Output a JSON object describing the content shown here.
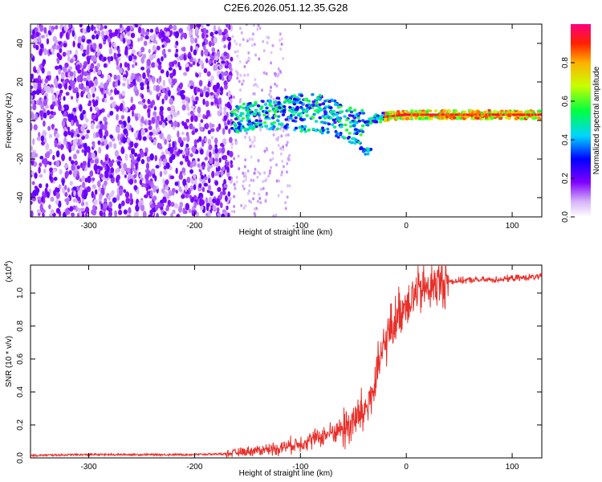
{
  "title": "C2E6.2026.051.12.35.G28",
  "colorbar": {
    "label": "Normalized spectral amplitude",
    "ticks": [
      "0.0",
      "0.2",
      "0.4",
      "0.6",
      "0.8"
    ],
    "tick_values": [
      0.0,
      0.2,
      0.4,
      0.6,
      0.8
    ],
    "range": [
      0,
      1
    ]
  },
  "chart_data": [
    {
      "type": "heatmap",
      "name": "spectrogram",
      "xlabel": "Height of straight line (km)",
      "ylabel": "Frequency (Hz)",
      "xlim": [
        -355,
        128
      ],
      "ylim": [
        -50,
        50
      ],
      "xticks": [
        -300,
        -200,
        -100,
        0,
        100
      ],
      "yticks": [
        -40,
        -20,
        0,
        20,
        40
      ],
      "description_points": {
        "noise_region_km": [
          -355,
          -165
        ],
        "sparse_region_km": [
          -165,
          -110
        ],
        "ridge": [
          {
            "x": -160,
            "y": 1
          },
          {
            "x": -140,
            "y": 3
          },
          {
            "x": -120,
            "y": 5
          },
          {
            "x": -100,
            "y": 7
          },
          {
            "x": -90,
            "y": 7
          },
          {
            "x": -80,
            "y": 6
          },
          {
            "x": -70,
            "y": 4
          },
          {
            "x": -55,
            "y": 0
          },
          {
            "x": -45,
            "y": -2
          },
          {
            "x": -35,
            "y": 0
          },
          {
            "x": -20,
            "y": 2
          },
          {
            "x": 0,
            "y": 3
          },
          {
            "x": 50,
            "y": 3
          },
          {
            "x": 100,
            "y": 3
          },
          {
            "x": 128,
            "y": 3
          }
        ],
        "lower_branch": [
          {
            "x": -150,
            "y": -3
          },
          {
            "x": -120,
            "y": -3
          },
          {
            "x": -100,
            "y": -4
          },
          {
            "x": -80,
            "y": -5
          },
          {
            "x": -60,
            "y": -8
          },
          {
            "x": -45,
            "y": -12
          },
          {
            "x": -40,
            "y": -16
          }
        ]
      }
    },
    {
      "type": "line",
      "name": "snr",
      "color": "#e8302a",
      "xlabel": "Height of straight line (km)",
      "ylabel": "SNR (10 * v/v)",
      "y_multiplier": "(x10",
      "y_multiplier_exp": "4",
      "y_multiplier_close": ")",
      "xlim": [
        -355,
        128
      ],
      "ylim": [
        0,
        1.17
      ],
      "xticks": [
        -300,
        -200,
        -100,
        0,
        100
      ],
      "yticks": [
        0.0,
        0.2,
        0.4,
        0.6,
        0.8,
        1.0
      ],
      "series": [
        {
          "name": "SNR",
          "x": [
            -355,
            -300,
            -250,
            -200,
            -170,
            -150,
            -120,
            -100,
            -80,
            -60,
            -50,
            -40,
            -30,
            -25,
            -20,
            -15,
            -10,
            -5,
            0,
            10,
            20,
            30,
            40,
            60,
            80,
            100,
            128
          ],
          "y": [
            0.015,
            0.02,
            0.02,
            0.02,
            0.025,
            0.04,
            0.06,
            0.09,
            0.13,
            0.18,
            0.22,
            0.28,
            0.42,
            0.58,
            0.7,
            0.78,
            0.84,
            0.9,
            0.95,
            1.0,
            1.03,
            1.06,
            1.07,
            1.08,
            1.08,
            1.09,
            1.1
          ]
        }
      ]
    }
  ]
}
